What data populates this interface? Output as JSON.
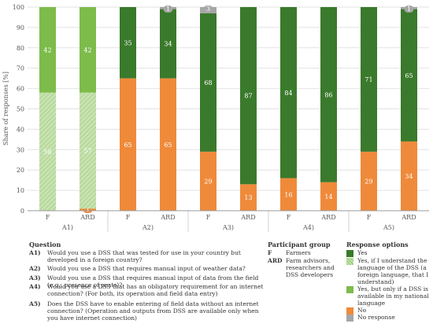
{
  "chart_data": {
    "type": "bar",
    "stacked": true,
    "ylabel": "Share of responses [%]",
    "ylim": [
      0,
      100
    ],
    "yticks": [
      0,
      10,
      20,
      30,
      40,
      50,
      60,
      70,
      80,
      90,
      100
    ],
    "grid": true,
    "groups": [
      {
        "label": "A1)",
        "bars": [
          {
            "label": "F",
            "segments": [
              {
                "key": "yes_understand",
                "value": 58
              },
              {
                "key": "yes_national",
                "value": 42
              }
            ]
          },
          {
            "label": "ARD",
            "segments": [
              {
                "key": "no",
                "value": 1
              },
              {
                "key": "yes_understand",
                "value": 57
              },
              {
                "key": "yes_national",
                "value": 42
              }
            ]
          }
        ]
      },
      {
        "label": "A2)",
        "bars": [
          {
            "label": "F",
            "segments": [
              {
                "key": "no",
                "value": 65
              },
              {
                "key": "yes",
                "value": 35
              }
            ]
          },
          {
            "label": "ARD",
            "segments": [
              {
                "key": "no",
                "value": 65
              },
              {
                "key": "yes",
                "value": 34
              },
              {
                "key": "no_response",
                "value": 1
              }
            ]
          }
        ]
      },
      {
        "label": "A3)",
        "bars": [
          {
            "label": "F",
            "segments": [
              {
                "key": "no",
                "value": 29
              },
              {
                "key": "yes",
                "value": 68
              },
              {
                "key": "no_response",
                "value": 3
              }
            ]
          },
          {
            "label": "ARD",
            "segments": [
              {
                "key": "no",
                "value": 13
              },
              {
                "key": "yes",
                "value": 87
              }
            ]
          }
        ]
      },
      {
        "label": "A4)",
        "bars": [
          {
            "label": "F",
            "segments": [
              {
                "key": "no",
                "value": 16
              },
              {
                "key": "yes",
                "value": 84
              }
            ]
          },
          {
            "label": "ARD",
            "segments": [
              {
                "key": "no",
                "value": 14
              },
              {
                "key": "yes",
                "value": 86
              }
            ]
          }
        ]
      },
      {
        "label": "A5)",
        "bars": [
          {
            "label": "F",
            "segments": [
              {
                "key": "no",
                "value": 29
              },
              {
                "key": "yes",
                "value": 71
              }
            ]
          },
          {
            "label": "ARD",
            "segments": [
              {
                "key": "no",
                "value": 34
              },
              {
                "key": "yes",
                "value": 65
              },
              {
                "key": "no_response",
                "value": 1
              }
            ]
          }
        ]
      }
    ],
    "colors": {
      "yes": "#3a7a2c",
      "yes_understand": "#c9e2b2",
      "yes_understand_hatch": "#9fcf80",
      "yes_national": "#7dbb4b",
      "no": "#ef8a3a",
      "no_response": "#a6a6a6",
      "grid": "#e2e2e2"
    }
  },
  "legend": {
    "question_title": "Question",
    "questions": [
      {
        "key": "A1)",
        "text": "Would you use a DSS that was tested for use in your country but developed in a foreign country?"
      },
      {
        "key": "A2)",
        "text": "Would you use a DSS that requires manual input of weather data?"
      },
      {
        "key": "A3)",
        "text": "Would you use a DSS that requires manual input of data from the field (e.g., presence of pests)?"
      },
      {
        "key": "A4)",
        "text": "Would you use a DSS that has an obligatory requirement for an internet connection? (For both, its operation and field data entry)"
      },
      {
        "key": "A5)",
        "text": "Does the DSS have to enable entering of field data without an internet connection? (Operation and outputs from DSS are available only when you have internet connection)"
      }
    ],
    "group_title": "Participant group",
    "groups": [
      {
        "key": "F",
        "text": "Farmers"
      },
      {
        "key": "ARD",
        "text": "Farm advisors, researchers and DSS developers"
      }
    ],
    "response_title": "Response options",
    "responses": [
      {
        "key": "yes",
        "text": "Yes"
      },
      {
        "key": "yes_understand",
        "text": "Yes, if I understand the language of the DSS (a foreign language, that I understand)"
      },
      {
        "key": "yes_national",
        "text": "Yes, but only if a DSS is available in my national language"
      },
      {
        "key": "no",
        "text": "No"
      },
      {
        "key": "no_response",
        "text": "No response"
      }
    ]
  }
}
